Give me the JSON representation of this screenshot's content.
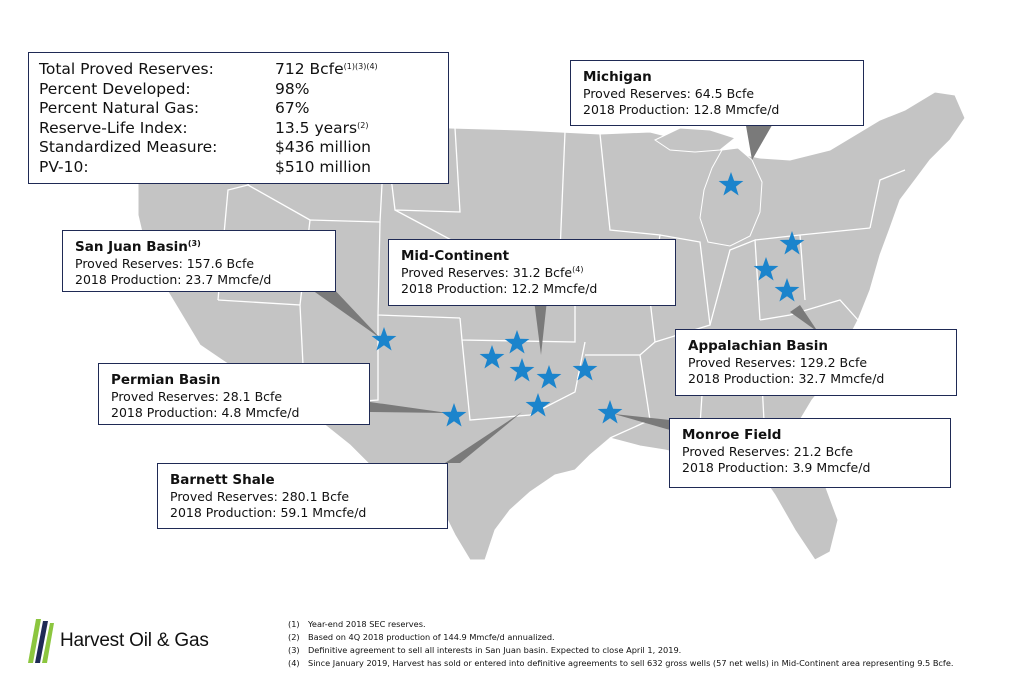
{
  "summary": {
    "rows": [
      {
        "label": "Total Proved Reserves:",
        "value": "712 Bcfe",
        "sup": "(1)(3)(4)"
      },
      {
        "label": "Percent Developed:",
        "value": "98%",
        "sup": ""
      },
      {
        "label": "Percent Natural Gas:",
        "value": "67%",
        "sup": ""
      },
      {
        "label": "Reserve-Life Index:",
        "value": "13.5 years",
        "sup": "(2)"
      },
      {
        "label": "Standardized Measure:",
        "value": "$436 million",
        "sup": ""
      },
      {
        "label": "PV-10:",
        "value": "$510 million",
        "sup": ""
      }
    ]
  },
  "regions": {
    "michigan": {
      "title": "Michigan",
      "title_sup": "",
      "reserves": "Proved Reserves: 64.5 Bcfe",
      "reserves_sup": "",
      "production": "2018 Production: 12.8 Mmcfe/d"
    },
    "san_juan": {
      "title": "San Juan Basin",
      "title_sup": "(3)",
      "reserves": "Proved Reserves: 157.6 Bcfe",
      "reserves_sup": "",
      "production": "2018 Production: 23.7 Mmcfe/d"
    },
    "mid_continent": {
      "title": "Mid-Continent",
      "title_sup": "",
      "reserves": "Proved Reserves: 31.2 Bcfe",
      "reserves_sup": "(4)",
      "production": "2018 Production: 12.2 Mmcfe/d"
    },
    "appalachian": {
      "title": "Appalachian Basin",
      "title_sup": "",
      "reserves": "Proved Reserves: 129.2 Bcfe",
      "reserves_sup": "",
      "production": "2018 Production: 32.7 Mmcfe/d"
    },
    "permian": {
      "title": "Permian Basin",
      "title_sup": "",
      "reserves": "Proved Reserves: 28.1 Bcfe",
      "reserves_sup": "",
      "production": "2018 Production: 4.8 Mmcfe/d"
    },
    "monroe": {
      "title": "Monroe Field",
      "title_sup": "",
      "reserves": "Proved Reserves: 21.2 Bcfe",
      "reserves_sup": "",
      "production": "2018 Production: 3.9 Mmcfe/d"
    },
    "barnett": {
      "title": "Barnett Shale",
      "title_sup": "",
      "reserves": "Proved Reserves: 280.1 Bcfe",
      "reserves_sup": "",
      "production": "2018 Production: 59.1 Mmcfe/d"
    }
  },
  "footnotes": [
    {
      "num": "(1)",
      "text": "Year-end 2018 SEC reserves."
    },
    {
      "num": "(2)",
      "text": "Based on 4Q 2018 production of 144.9 Mmcfe/d annualized."
    },
    {
      "num": "(3)",
      "text": "Definitive agreement to sell all interests in San Juan basin. Expected to close April 1, 2019."
    },
    {
      "num": "(4)",
      "text": "Since January 2019, Harvest has sold or entered into definitive agreements to sell 632 gross wells (57 net wells) in Mid-Continent area representing 9.5 Bcfe."
    }
  ],
  "logo": {
    "text": "Harvest Oil & Gas"
  },
  "colors": {
    "map_fill": "#c4c4c4",
    "state_border": "#ffffff",
    "star": "#1b84cc",
    "box_border": "#1f2a55",
    "leader": "#7a7a7a",
    "logo_green": "#8cc63f",
    "logo_navy": "#1f2a55"
  }
}
